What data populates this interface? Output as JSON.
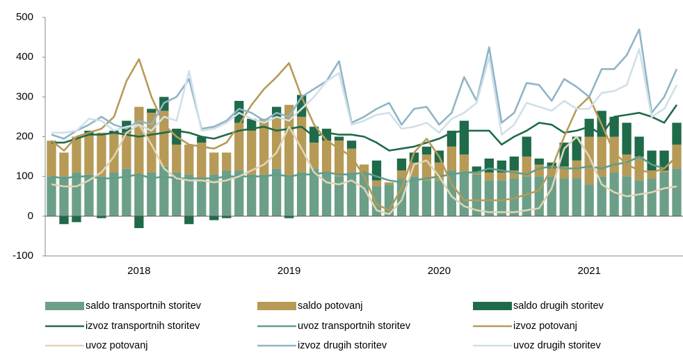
{
  "chart_data": {
    "type": "bar",
    "categories": [
      null,
      null,
      null,
      null,
      null,
      null,
      null,
      "2018",
      null,
      null,
      null,
      null,
      null,
      null,
      null,
      null,
      null,
      null,
      null,
      "2019",
      null,
      null,
      null,
      null,
      null,
      null,
      null,
      null,
      null,
      null,
      null,
      "2020",
      null,
      null,
      null,
      null,
      null,
      null,
      null,
      null,
      null,
      null,
      null,
      "2021",
      null,
      null,
      null,
      null,
      null,
      null,
      null
    ],
    "ylim": [
      -100,
      500
    ],
    "yticks": [
      -100,
      0,
      100,
      200,
      300,
      400,
      500
    ],
    "series": [
      {
        "name": "saldo transportnih storitev",
        "type": "bar",
        "color": "#6c9f88",
        "values": [
          100,
          100,
          110,
          105,
          100,
          110,
          120,
          105,
          110,
          125,
          110,
          105,
          95,
          105,
          115,
          115,
          105,
          105,
          120,
          100,
          110,
          120,
          110,
          100,
          110,
          110,
          75,
          80,
          95,
          100,
          90,
          90,
          115,
          110,
          105,
          90,
          90,
          95,
          100,
          100,
          100,
          95,
          95,
          80,
          100,
          110,
          100,
          90,
          95,
          110,
          120
        ]
      },
      {
        "name": "saldo potovanj",
        "type": "bar",
        "color": "#b69a56",
        "values": [
          90,
          60,
          90,
          100,
          110,
          100,
          90,
          170,
          150,
          140,
          70,
          75,
          90,
          55,
          45,
          120,
          110,
          140,
          130,
          180,
          140,
          65,
          80,
          90,
          60,
          20,
          15,
          5,
          20,
          35,
          65,
          45,
          60,
          45,
          5,
          20,
          20,
          20,
          50,
          30,
          20,
          30,
          45,
          120,
          100,
          90,
          55,
          60,
          20,
          5,
          60
        ]
      },
      {
        "name": "saldo drugih storitev",
        "type": "bar",
        "color": "#1f6a49",
        "values": [
          0,
          -20,
          -15,
          10,
          -5,
          5,
          30,
          -30,
          10,
          35,
          40,
          -20,
          15,
          -10,
          -5,
          55,
          30,
          0,
          25,
          -5,
          55,
          40,
          30,
          10,
          20,
          0,
          50,
          0,
          30,
          25,
          20,
          30,
          40,
          85,
          15,
          35,
          30,
          35,
          50,
          15,
          15,
          60,
          60,
          45,
          65,
          50,
          80,
          50,
          50,
          50,
          55
        ]
      },
      {
        "name": "izvoz transportnih storitev",
        "type": "line",
        "color": "#1f6a49",
        "values": [
          185,
          185,
          195,
          205,
          205,
          210,
          205,
          200,
          205,
          210,
          215,
          210,
          200,
          195,
          205,
          215,
          220,
          225,
          215,
          220,
          225,
          200,
          210,
          205,
          205,
          200,
          185,
          165,
          170,
          175,
          185,
          195,
          210,
          215,
          215,
          215,
          180,
          200,
          215,
          235,
          230,
          210,
          215,
          225,
          205,
          250,
          255,
          260,
          250,
          235,
          280
        ]
      },
      {
        "name": "uvoz transportnih storitev",
        "type": "line",
        "color": "#5f9e8a",
        "values": [
          100,
          95,
          100,
          100,
          95,
          95,
          100,
          105,
          95,
          100,
          95,
          95,
          95,
          95,
          100,
          100,
          100,
          100,
          105,
          100,
          105,
          105,
          110,
          105,
          105,
          110,
          100,
          90,
          85,
          90,
          95,
          100,
          105,
          110,
          110,
          120,
          115,
          110,
          105,
          120,
          125,
          120,
          120,
          125,
          120,
          130,
          135,
          150,
          130,
          120,
          150
        ]
      },
      {
        "name": "izvoz potovanj",
        "type": "line",
        "color": "#b69a56",
        "values": [
          190,
          165,
          200,
          210,
          220,
          250,
          340,
          395,
          300,
          230,
          200,
          180,
          175,
          170,
          185,
          230,
          280,
          320,
          350,
          385,
          300,
          230,
          190,
          170,
          150,
          100,
          30,
          15,
          70,
          160,
          195,
          150,
          80,
          40,
          40,
          40,
          40,
          45,
          55,
          65,
          120,
          200,
          270,
          300,
          230,
          160,
          130,
          115,
          110,
          120,
          150
        ]
      },
      {
        "name": "uvoz potovanj",
        "type": "line",
        "color": "#e0d5b6",
        "values": [
          80,
          75,
          75,
          90,
          110,
          150,
          210,
          230,
          180,
          120,
          95,
          90,
          90,
          85,
          90,
          100,
          115,
          130,
          160,
          225,
          170,
          110,
          85,
          80,
          90,
          70,
          15,
          5,
          40,
          130,
          140,
          100,
          50,
          25,
          15,
          10,
          10,
          10,
          15,
          20,
          70,
          170,
          200,
          150,
          80,
          60,
          50,
          55,
          60,
          70,
          75
        ]
      },
      {
        "name": "izvoz drugih storitev",
        "type": "line",
        "color": "#8fb4c6",
        "values": [
          205,
          195,
          215,
          230,
          250,
          230,
          220,
          240,
          230,
          285,
          300,
          345,
          220,
          225,
          240,
          270,
          260,
          240,
          260,
          250,
          300,
          320,
          340,
          390,
          235,
          250,
          270,
          285,
          230,
          270,
          275,
          230,
          260,
          350,
          290,
          425,
          235,
          260,
          335,
          330,
          290,
          345,
          325,
          300,
          370,
          370,
          405,
          470,
          260,
          300,
          370
        ]
      },
      {
        "name": "uvoz drugih storitev",
        "type": "line",
        "color": "#cfe0e8",
        "values": [
          210,
          210,
          215,
          245,
          240,
          215,
          225,
          230,
          215,
          250,
          240,
          365,
          215,
          220,
          235,
          260,
          245,
          235,
          250,
          240,
          270,
          300,
          340,
          360,
          230,
          240,
          255,
          260,
          220,
          225,
          235,
          210,
          245,
          260,
          285,
          400,
          205,
          230,
          285,
          275,
          265,
          290,
          270,
          270,
          310,
          315,
          330,
          420,
          250,
          270,
          330
        ]
      }
    ]
  }
}
